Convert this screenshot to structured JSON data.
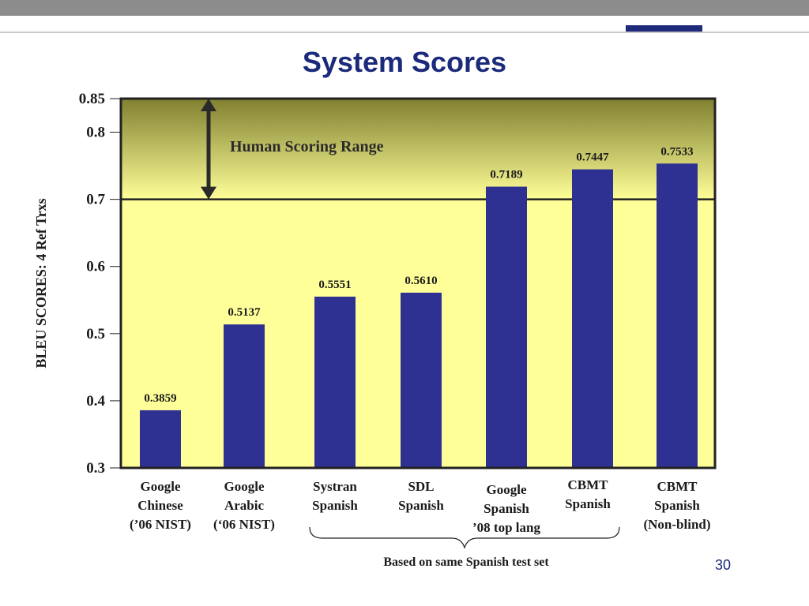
{
  "slide": {
    "title": "System Scores",
    "page_number": "30",
    "footnote": "Based on same Spanish test set",
    "accent_color": "#1f2a7a"
  },
  "chart_data": {
    "type": "bar",
    "categories": [
      "Google Chinese (’06 NIST)",
      "Google Arabic (‘06 NIST)",
      "Systran Spanish",
      "SDL Spanish",
      "Google Spanish ’08 top lang",
      "CBMT Spanish",
      "CBMT Spanish (Non-blind)"
    ],
    "category_lines": [
      [
        "Google",
        "Chinese",
        "(’06 NIST)"
      ],
      [
        "Google",
        "Arabic",
        "(‘06 NIST)"
      ],
      [
        "Systran",
        "Spanish"
      ],
      [
        "SDL",
        "Spanish"
      ],
      [
        "Google",
        "Spanish",
        "’08 top lang"
      ],
      [
        "CBMT",
        "Spanish"
      ],
      [
        "CBMT",
        "Spanish",
        "(Non-blind)"
      ]
    ],
    "values": [
      0.3859,
      0.5137,
      0.5551,
      0.561,
      0.7189,
      0.7447,
      0.7533
    ],
    "value_labels": [
      "0.3859",
      "0.5137",
      "0.5551",
      "0.5610",
      "0.7189",
      "0.7447",
      "0.7533"
    ],
    "ylabel": "BLEU SCORES: 4 Ref Trxs",
    "xlabel": "",
    "ylim": [
      0.3,
      0.85
    ],
    "yticks": [
      0.3,
      0.4,
      0.5,
      0.6,
      0.7,
      0.8,
      0.85
    ],
    "ytick_labels": [
      "0.3",
      "0.4",
      "0.5",
      "0.6",
      "0.7",
      "0.8",
      "0.85"
    ],
    "human_range": {
      "from": 0.7,
      "to": 0.85,
      "label": "Human Scoring Range"
    },
    "colors": {
      "bar": "#2e3192",
      "plot_background": "#ffff99",
      "human_range_top": "#808030",
      "human_range_bottom": "#ffff99",
      "frame": "#222222"
    }
  }
}
